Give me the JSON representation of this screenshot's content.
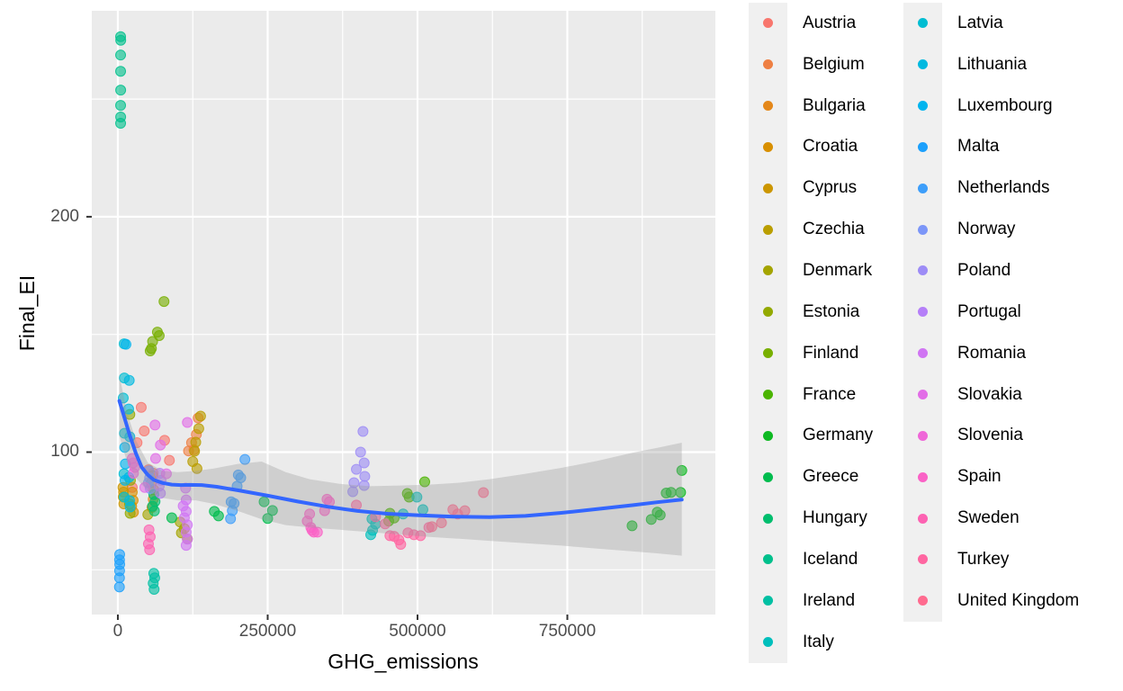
{
  "panel": {
    "background": "#EBEBEB",
    "grid_color": "#FFFFFF",
    "tick_color": "#333333",
    "tick_label_color": "#4D4D4D"
  },
  "legend": {
    "key_background": "#F0F0F0",
    "columns": [
      [
        "Austria",
        "Belgium",
        "Bulgaria",
        "Croatia",
        "Cyprus",
        "Czechia",
        "Denmark",
        "Estonia",
        "Finland",
        "France",
        "Germany",
        "Greece",
        "Hungary",
        "Iceland",
        "Ireland",
        "Italy"
      ],
      [
        "Latvia",
        "Lithuania",
        "Luxembourg",
        "Malta",
        "Netherlands",
        "Norway",
        "Poland",
        "Portugal",
        "Romania",
        "Slovakia",
        "Slovenia",
        "Spain",
        "Sweden",
        "Turkey",
        "United Kingdom"
      ]
    ]
  },
  "chart_data": {
    "type": "scatter",
    "title": "",
    "xlabel": "GHG_emissions",
    "ylabel": "Final_EI",
    "xlim": [
      -43500,
      997000
    ],
    "ylim": [
      31,
      287.5
    ],
    "grid": true,
    "legend_position": "right",
    "x_ticks": [
      {
        "value": 0,
        "label": "0"
      },
      {
        "value": 250000,
        "label": "250000"
      },
      {
        "value": 500000,
        "label": "500000"
      },
      {
        "value": 750000,
        "label": "750000"
      }
    ],
    "x_minor": [
      125000,
      375000,
      625000,
      875000
    ],
    "y_ticks": [
      {
        "value": 100,
        "label": "100"
      },
      {
        "value": 200,
        "label": "200"
      }
    ],
    "y_minor": [
      50,
      150,
      250
    ],
    "point_opacity": 0.62,
    "smooth": {
      "color": "#3366FF",
      "width": 4,
      "line": [
        [
          2500,
          121.8
        ],
        [
          10000,
          115.5
        ],
        [
          20000,
          107
        ],
        [
          30000,
          99.5
        ],
        [
          40000,
          93.5
        ],
        [
          50000,
          90.3
        ],
        [
          60000,
          88.2
        ],
        [
          75000,
          86.9
        ],
        [
          90000,
          86.2
        ],
        [
          105000,
          86.0
        ],
        [
          120000,
          86.1
        ],
        [
          140000,
          86.0
        ],
        [
          165000,
          85.3
        ],
        [
          200000,
          83.8
        ],
        [
          250000,
          81.5
        ],
        [
          300000,
          79.0
        ],
        [
          350000,
          76.8
        ],
        [
          400000,
          75.0
        ],
        [
          450000,
          73.8
        ],
        [
          500000,
          73.2
        ],
        [
          560000,
          72.6
        ],
        [
          620000,
          72.4
        ],
        [
          680000,
          72.9
        ],
        [
          740000,
          74.2
        ],
        [
          800000,
          75.8
        ],
        [
          860000,
          77.5
        ],
        [
          900000,
          78.7
        ],
        [
          941000,
          79.8
        ]
      ]
    },
    "ribbon": {
      "color": "#999999",
      "opacity": 0.33,
      "stations": [
        [
          2500,
          107,
          133
        ],
        [
          15000,
          96,
          117
        ],
        [
          30000,
          89,
          105
        ],
        [
          50000,
          83.5,
          95.5
        ],
        [
          75000,
          80.5,
          92
        ],
        [
          100000,
          79.5,
          91.5
        ],
        [
          130000,
          79.5,
          92
        ],
        [
          160000,
          78,
          93
        ],
        [
          200000,
          75,
          95
        ],
        [
          240000,
          71.5,
          96
        ],
        [
          280000,
          69,
          91.5
        ],
        [
          320000,
          68,
          88.5
        ],
        [
          370000,
          67,
          86.5
        ],
        [
          420000,
          66,
          85.5
        ],
        [
          470000,
          65,
          85.8
        ],
        [
          520000,
          64,
          86.2
        ],
        [
          570000,
          63.2,
          87
        ],
        [
          620000,
          62.3,
          88.5
        ],
        [
          680000,
          61.3,
          90.8
        ],
        [
          740000,
          60.3,
          93.3
        ],
        [
          800000,
          59,
          96.3
        ],
        [
          860000,
          57.8,
          99.8
        ],
        [
          900000,
          57,
          101.8
        ],
        [
          941000,
          56,
          104
        ]
      ]
    },
    "series": [
      {
        "name": "Austria",
        "color": "#F8766D",
        "points": [
          [
            39000,
            119
          ],
          [
            44000,
            109
          ],
          [
            32000,
            104
          ],
          [
            78000,
            105
          ],
          [
            86000,
            96.5
          ],
          [
            51000,
            92.5
          ],
          [
            59000,
            91
          ],
          [
            24000,
            85
          ]
        ]
      },
      {
        "name": "Belgium",
        "color": "#EE7F42",
        "points": [
          [
            134000,
            114.5
          ],
          [
            131000,
            107.5
          ],
          [
            123000,
            104
          ],
          [
            127000,
            101
          ],
          [
            118000,
            100.5
          ]
        ]
      },
      {
        "name": "Bulgaria",
        "color": "#E48719",
        "points": [
          [
            58000,
            90
          ],
          [
            56000,
            87
          ],
          [
            60000,
            84
          ],
          [
            59000,
            80
          ],
          [
            57000,
            76.5
          ]
        ]
      },
      {
        "name": "Croatia",
        "color": "#D88F00",
        "points": [
          [
            24000,
            83
          ],
          [
            25500,
            79.5
          ],
          [
            23000,
            77
          ],
          [
            26000,
            74.5
          ]
        ]
      },
      {
        "name": "Cyprus",
        "color": "#CC9600",
        "points": [
          [
            8500,
            85
          ],
          [
            9500,
            83
          ],
          [
            9000,
            81
          ],
          [
            10000,
            78
          ]
        ]
      },
      {
        "name": "Czechia",
        "color": "#BA9E00",
        "points": [
          [
            138000,
            115.3
          ],
          [
            135000,
            110
          ],
          [
            130000,
            104.2
          ],
          [
            128000,
            100.4
          ],
          [
            125000,
            96
          ],
          [
            132000,
            93
          ]
        ]
      },
      {
        "name": "Denmark",
        "color": "#A4A400",
        "points": [
          [
            104000,
            70.3
          ],
          [
            111000,
            67.5
          ],
          [
            106000,
            65.7
          ],
          [
            116000,
            63.1
          ],
          [
            50000,
            73.5
          ]
        ]
      },
      {
        "name": "Estonia",
        "color": "#93A900",
        "points": [
          [
            20000,
            116
          ],
          [
            21000,
            88
          ],
          [
            19500,
            78
          ],
          [
            20500,
            74
          ]
        ]
      },
      {
        "name": "Finland",
        "color": "#78AF00",
        "points": [
          [
            77000,
            164
          ],
          [
            66000,
            151
          ],
          [
            69000,
            149.5
          ],
          [
            58000,
            147
          ],
          [
            56000,
            144
          ],
          [
            54000,
            143
          ]
        ]
      },
      {
        "name": "France",
        "color": "#4BB400",
        "points": [
          [
            512000,
            87.4
          ],
          [
            483000,
            82.4
          ],
          [
            486000,
            80.9
          ],
          [
            454000,
            74
          ],
          [
            461000,
            72
          ],
          [
            452000,
            70.7
          ]
        ]
      },
      {
        "name": "Germany",
        "color": "#0EB922",
        "points": [
          [
            858000,
            68.7
          ],
          [
            890000,
            71.4
          ],
          [
            900000,
            74.5
          ],
          [
            905000,
            73.3
          ],
          [
            915000,
            82.6
          ],
          [
            923000,
            82.9
          ],
          [
            939000,
            82.9
          ],
          [
            941000,
            92.2
          ]
        ]
      },
      {
        "name": "Greece",
        "color": "#00BC4E",
        "points": [
          [
            161000,
            74.8
          ],
          [
            168000,
            72.9
          ],
          [
            90000,
            72.1
          ],
          [
            244000,
            78.9
          ],
          [
            258000,
            75.2
          ],
          [
            250000,
            71.8
          ]
        ]
      },
      {
        "name": "Hungary",
        "color": "#00BE6E",
        "points": [
          [
            60000,
            82
          ],
          [
            62000,
            79
          ],
          [
            58000,
            77
          ],
          [
            61000,
            75
          ]
        ]
      },
      {
        "name": "Iceland",
        "color": "#00C08C",
        "points": [
          [
            4600,
            276.5
          ],
          [
            4800,
            275
          ],
          [
            4600,
            268.7
          ],
          [
            4600,
            261.8
          ],
          [
            4700,
            253.8
          ],
          [
            4600,
            247.3
          ],
          [
            4700,
            242.4
          ],
          [
            4600,
            239.7
          ]
        ]
      },
      {
        "name": "Ireland",
        "color": "#00C0A3",
        "points": [
          [
            60000,
            48.5
          ],
          [
            61500,
            46.6
          ],
          [
            59000,
            44.3
          ],
          [
            60500,
            41.7
          ]
        ]
      },
      {
        "name": "Italy",
        "color": "#00BFBC",
        "points": [
          [
            424000,
            71.6
          ],
          [
            430000,
            69.4
          ],
          [
            425000,
            66.8
          ],
          [
            422000,
            64.9
          ],
          [
            499000,
            80.9
          ],
          [
            509000,
            75.6
          ],
          [
            476000,
            73.7
          ]
        ]
      },
      {
        "name": "Latvia",
        "color": "#00BDD2",
        "points": [
          [
            10500,
            146
          ],
          [
            10800,
            131.5
          ],
          [
            9000,
            123
          ],
          [
            11000,
            108
          ],
          [
            10200,
            90.8
          ],
          [
            10600,
            80.9
          ]
        ]
      },
      {
        "name": "Lithuania",
        "color": "#00B9E0",
        "points": [
          [
            19000,
            130.5
          ],
          [
            18000,
            118.3
          ],
          [
            20000,
            106.5
          ],
          [
            18500,
            89.3
          ],
          [
            19500,
            79.4
          ],
          [
            20500,
            76.7
          ]
        ]
      },
      {
        "name": "Luxembourg",
        "color": "#00B4EF",
        "points": [
          [
            13500,
            145.8
          ],
          [
            11500,
            102
          ],
          [
            12500,
            95
          ],
          [
            12000,
            88
          ]
        ]
      },
      {
        "name": "Malta",
        "color": "#1CA0FC",
        "points": [
          [
            3000,
            56.5
          ],
          [
            2800,
            54.2
          ],
          [
            3100,
            52.3
          ],
          [
            2900,
            49.6
          ],
          [
            2700,
            46.6
          ],
          [
            2600,
            42.7
          ]
        ]
      },
      {
        "name": "Netherlands",
        "color": "#3D9EFA",
        "points": [
          [
            212000,
            96.9
          ],
          [
            201000,
            90.3
          ],
          [
            205000,
            89.1
          ],
          [
            199000,
            85.5
          ],
          [
            189000,
            78.9
          ],
          [
            194000,
            78.2
          ],
          [
            191000,
            75.1
          ],
          [
            188000,
            71.7
          ]
        ]
      },
      {
        "name": "Norway",
        "color": "#7C96F8",
        "points": [
          [
            52000,
            92
          ],
          [
            53000,
            89
          ],
          [
            51000,
            87
          ],
          [
            54000,
            84.5
          ]
        ]
      },
      {
        "name": "Poland",
        "color": "#9D8CF6",
        "points": [
          [
            409000,
            108.8
          ],
          [
            405000,
            100
          ],
          [
            411000,
            95.4
          ],
          [
            398000,
            92.7
          ],
          [
            412000,
            89.7
          ],
          [
            394000,
            87
          ],
          [
            411000,
            85.8
          ],
          [
            392000,
            83.2
          ]
        ]
      },
      {
        "name": "Portugal",
        "color": "#B57FF8",
        "points": [
          [
            70000,
            91
          ],
          [
            72000,
            88
          ],
          [
            69000,
            85.5
          ],
          [
            71000,
            82.5
          ]
        ]
      },
      {
        "name": "Romania",
        "color": "#D075F3",
        "points": [
          [
            113000,
            84.7
          ],
          [
            114000,
            79.7
          ],
          [
            109000,
            77.1
          ],
          [
            114000,
            74.8
          ],
          [
            111000,
            72.1
          ],
          [
            116000,
            69.1
          ],
          [
            114000,
            66
          ],
          [
            116000,
            63
          ],
          [
            114000,
            60.4
          ]
        ]
      },
      {
        "name": "Slovakia",
        "color": "#E26DE7",
        "points": [
          [
            116000,
            112.6
          ],
          [
            62000,
            111.5
          ],
          [
            71000,
            103
          ],
          [
            63000,
            97.3
          ],
          [
            81000,
            90.8
          ],
          [
            45000,
            85
          ]
        ]
      },
      {
        "name": "Slovenia",
        "color": "#EF67D8",
        "points": [
          [
            24000,
            97.3
          ],
          [
            25500,
            95.4
          ],
          [
            28000,
            93.5
          ],
          [
            26000,
            91
          ]
        ]
      },
      {
        "name": "Spain",
        "color": "#FA62C6",
        "points": [
          [
            320000,
            73.7
          ],
          [
            316000,
            70.7
          ],
          [
            322000,
            68
          ],
          [
            324000,
            66.8
          ],
          [
            327000,
            66
          ],
          [
            333000,
            66
          ],
          [
            349000,
            80
          ],
          [
            353000,
            78.9
          ],
          [
            345000,
            75.1
          ]
        ]
      },
      {
        "name": "Sweden",
        "color": "#FD62B2",
        "points": [
          [
            52000,
            67
          ],
          [
            54000,
            64
          ],
          [
            51000,
            61
          ],
          [
            53000,
            58.5
          ]
        ]
      },
      {
        "name": "Turkey",
        "color": "#FF66A1",
        "points": [
          [
            398000,
            77.5
          ],
          [
            430000,
            72.5
          ],
          [
            446000,
            69.5
          ],
          [
            454000,
            64.5
          ],
          [
            461000,
            64.2
          ],
          [
            469000,
            62.7
          ],
          [
            472000,
            60.8
          ],
          [
            484000,
            65.7
          ],
          [
            494000,
            64.9
          ],
          [
            505000,
            64.5
          ],
          [
            519000,
            68
          ]
        ]
      },
      {
        "name": "United Kingdom",
        "color": "#FF6B8F",
        "points": [
          [
            559000,
            75.6
          ],
          [
            567000,
            73.7
          ],
          [
            579000,
            75.1
          ],
          [
            610000,
            82.8
          ],
          [
            540000,
            70
          ],
          [
            524000,
            68.3
          ]
        ]
      }
    ]
  }
}
